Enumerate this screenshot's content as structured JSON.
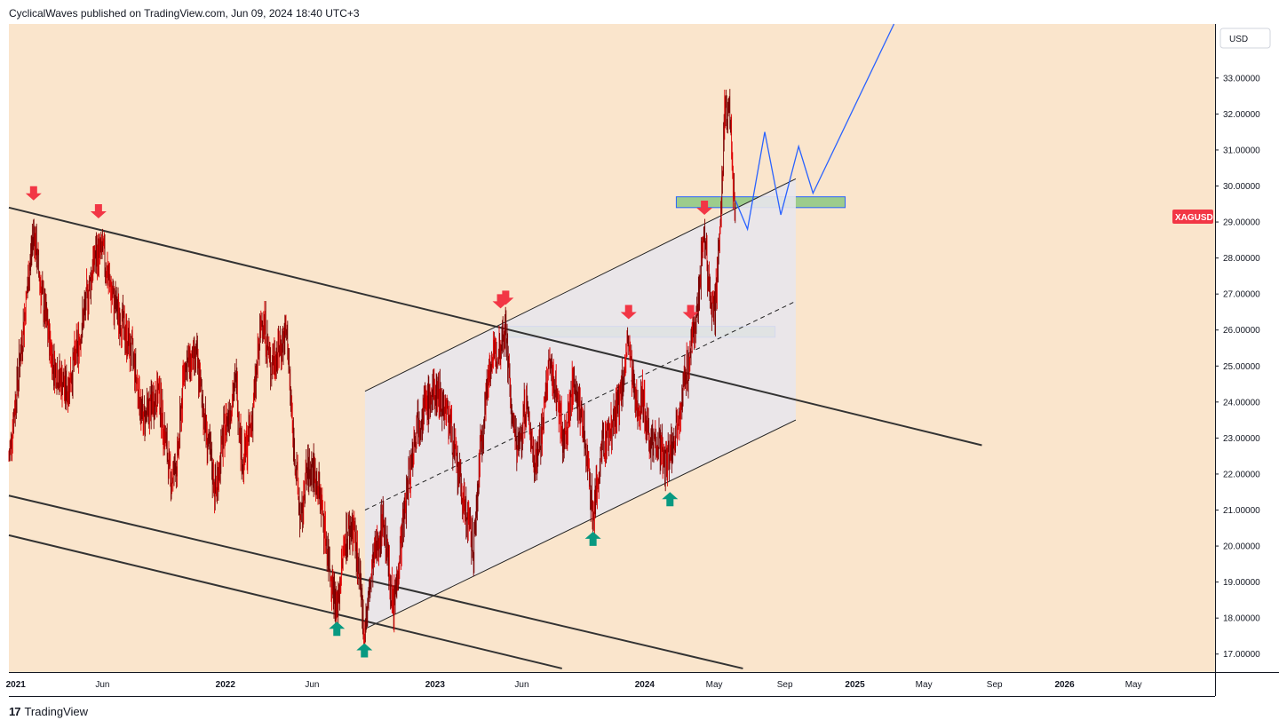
{
  "header": {
    "publish_line": "CyclicalWaves published on TradingView.com, Jun 09, 2024 18:40 UTC+3"
  },
  "footer": {
    "brand": "TradingView",
    "logo_mark": "17"
  },
  "colors": {
    "chart_bg": "#fae5cc",
    "candle": "#7a0000",
    "candle_accent": "#e00000",
    "channel_fill": "#e8e6ec",
    "zone_fill": "#9dcc8c",
    "zone_border": "#2962ff",
    "projection": "#2962ff",
    "trendline": "#333333",
    "arrow_down": "#f23645",
    "arrow_up": "#089981",
    "badge": "#f23645"
  },
  "chart_data": {
    "type": "candlestick",
    "symbol": "XAGUSD",
    "currency_button": "USD",
    "y_axis": {
      "range": [
        16.5,
        34.5
      ],
      "ticks": [
        "33.00000",
        "32.00000",
        "31.00000",
        "30.00000",
        "29.00000",
        "28.00000",
        "27.00000",
        "26.00000",
        "25.00000",
        "24.00000",
        "23.00000",
        "22.00000",
        "21.00000",
        "20.00000",
        "19.00000",
        "18.00000",
        "17.00000"
      ]
    },
    "x_axis": {
      "range": [
        "2020-12-20",
        "2026-09-20"
      ],
      "ticks": [
        {
          "label": "2021",
          "date": "2021-01-01",
          "bold": true
        },
        {
          "label": "Jun",
          "date": "2021-06-01"
        },
        {
          "label": "2022",
          "date": "2022-01-01",
          "bold": true
        },
        {
          "label": "Jun",
          "date": "2022-06-01"
        },
        {
          "label": "2023",
          "date": "2023-01-01",
          "bold": true
        },
        {
          "label": "Jun",
          "date": "2023-06-01"
        },
        {
          "label": "2024",
          "date": "2024-01-01",
          "bold": true
        },
        {
          "label": "May",
          "date": "2024-05-01"
        },
        {
          "label": "Sep",
          "date": "2024-09-01"
        },
        {
          "label": "2025",
          "date": "2025-01-01",
          "bold": true
        },
        {
          "label": "May",
          "date": "2025-05-01"
        },
        {
          "label": "Sep",
          "date": "2025-09-01"
        },
        {
          "label": "2026",
          "date": "2026-01-01",
          "bold": true
        },
        {
          "label": "May",
          "date": "2026-05-01"
        }
      ]
    },
    "last_price_label": "XAGUSD",
    "price_path": [
      [
        "2020-12-20",
        22.4
      ],
      [
        "2021-01-15",
        26.2
      ],
      [
        "2021-02-01",
        28.8
      ],
      [
        "2021-02-15",
        27.0
      ],
      [
        "2021-03-08",
        25.0
      ],
      [
        "2021-03-31",
        24.3
      ],
      [
        "2021-04-20",
        25.6
      ],
      [
        "2021-05-18",
        28.0
      ],
      [
        "2021-06-01",
        28.2
      ],
      [
        "2021-06-20",
        26.8
      ],
      [
        "2021-07-05",
        26.2
      ],
      [
        "2021-07-25",
        25.2
      ],
      [
        "2021-08-10",
        23.5
      ],
      [
        "2021-08-25",
        23.9
      ],
      [
        "2021-09-07",
        24.3
      ],
      [
        "2021-09-28",
        21.8
      ],
      [
        "2021-10-10",
        22.4
      ],
      [
        "2021-10-21",
        25.0
      ],
      [
        "2021-11-12",
        25.2
      ],
      [
        "2021-11-30",
        23.0
      ],
      [
        "2021-12-15",
        21.5
      ],
      [
        "2021-12-30",
        23.2
      ],
      [
        "2022-01-20",
        24.6
      ],
      [
        "2022-01-31",
        22.2
      ],
      [
        "2022-02-15",
        23.4
      ],
      [
        "2022-03-07",
        26.5
      ],
      [
        "2022-03-20",
        25.0
      ],
      [
        "2022-04-18",
        25.9
      ],
      [
        "2022-04-28",
        23.2
      ],
      [
        "2022-05-13",
        20.5
      ],
      [
        "2022-05-20",
        21.9
      ],
      [
        "2022-06-01",
        22.2
      ],
      [
        "2022-06-15",
        21.4
      ],
      [
        "2022-07-01",
        19.5
      ],
      [
        "2022-07-14",
        18.2
      ],
      [
        "2022-07-28",
        20.2
      ],
      [
        "2022-08-12",
        20.6
      ],
      [
        "2022-08-31",
        17.6
      ],
      [
        "2022-09-15",
        19.5
      ],
      [
        "2022-10-03",
        20.8
      ],
      [
        "2022-10-20",
        18.2
      ],
      [
        "2022-11-15",
        21.8
      ],
      [
        "2022-12-01",
        23.5
      ],
      [
        "2022-12-20",
        24.0
      ],
      [
        "2023-01-05",
        24.3
      ],
      [
        "2023-01-25",
        23.6
      ],
      [
        "2023-02-10",
        22.0
      ],
      [
        "2023-02-28",
        20.6
      ],
      [
        "2023-03-09",
        19.9
      ],
      [
        "2023-03-20",
        22.5
      ],
      [
        "2023-04-05",
        25.0
      ],
      [
        "2023-04-20",
        25.4
      ],
      [
        "2023-05-04",
        26.1
      ],
      [
        "2023-05-15",
        23.5
      ],
      [
        "2023-05-26",
        22.6
      ],
      [
        "2023-06-08",
        24.0
      ],
      [
        "2023-06-23",
        22.4
      ],
      [
        "2023-07-05",
        23.0
      ],
      [
        "2023-07-19",
        25.1
      ],
      [
        "2023-08-01",
        24.2
      ],
      [
        "2023-08-14",
        22.8
      ],
      [
        "2023-08-31",
        24.7
      ],
      [
        "2023-09-15",
        23.3
      ],
      [
        "2023-09-25",
        22.3
      ],
      [
        "2023-10-03",
        20.8
      ],
      [
        "2023-10-20",
        22.8
      ],
      [
        "2023-11-01",
        23.2
      ],
      [
        "2023-11-15",
        23.8
      ],
      [
        "2023-12-04",
        25.6
      ],
      [
        "2023-12-15",
        23.9
      ],
      [
        "2023-12-28",
        24.1
      ],
      [
        "2024-01-10",
        23.0
      ],
      [
        "2024-01-25",
        22.9
      ],
      [
        "2024-02-07",
        22.2
      ],
      [
        "2024-02-20",
        22.9
      ],
      [
        "2024-03-06",
        24.2
      ],
      [
        "2024-03-18",
        25.1
      ],
      [
        "2024-04-05",
        27.1
      ],
      [
        "2024-04-12",
        28.8
      ],
      [
        "2024-04-22",
        27.3
      ],
      [
        "2024-05-01",
        26.3
      ],
      [
        "2024-05-10",
        28.2
      ],
      [
        "2024-05-17",
        31.2
      ],
      [
        "2024-05-20",
        32.3
      ],
      [
        "2024-05-29",
        31.8
      ],
      [
        "2024-06-04",
        29.8
      ],
      [
        "2024-06-07",
        29.2
      ]
    ],
    "projection": [
      [
        "2024-06-07",
        29.6
      ],
      [
        "2024-06-28",
        28.8
      ],
      [
        "2024-07-28",
        31.5
      ],
      [
        "2024-08-25",
        29.2
      ],
      [
        "2024-09-25",
        31.1
      ],
      [
        "2024-10-20",
        29.8
      ],
      [
        "2025-03-10",
        34.5
      ]
    ],
    "zones": [
      {
        "from": "2023-05-01",
        "to": "2024-08-15",
        "low": 25.8,
        "high": 26.1
      },
      {
        "from": "2024-02-25",
        "to": "2024-12-15",
        "low": 29.4,
        "high": 29.7
      }
    ],
    "channel": {
      "lower": [
        [
          "2022-09-01",
          17.7
        ],
        [
          "2024-09-20",
          23.5
        ]
      ],
      "upper": [
        [
          "2022-09-01",
          24.3
        ],
        [
          "2024-09-20",
          30.2
        ]
      ],
      "mid": [
        [
          "2022-09-01",
          21.0
        ],
        [
          "2024-09-20",
          26.8
        ]
      ]
    },
    "trendlines": [
      [
        [
          "2020-12-20",
          29.4
        ],
        [
          "2025-08-10",
          22.8
        ]
      ],
      [
        [
          "2020-12-20",
          21.4
        ],
        [
          "2024-06-20",
          16.6
        ]
      ],
      [
        [
          "2020-12-20",
          20.3
        ],
        [
          "2023-08-10",
          16.6
        ]
      ]
    ],
    "arrows": [
      {
        "dir": "down",
        "date": "2021-02-01",
        "price": 29.6
      },
      {
        "dir": "down",
        "date": "2021-05-25",
        "price": 29.1
      },
      {
        "dir": "down",
        "date": "2023-04-25",
        "price": 26.6
      },
      {
        "dir": "down",
        "date": "2023-05-04",
        "price": 26.7
      },
      {
        "dir": "down",
        "date": "2023-12-04",
        "price": 26.3
      },
      {
        "dir": "down",
        "date": "2024-03-21",
        "price": 26.3
      },
      {
        "dir": "down",
        "date": "2024-04-14",
        "price": 29.2
      },
      {
        "dir": "up",
        "date": "2022-07-14",
        "price": 17.9
      },
      {
        "dir": "up",
        "date": "2022-08-31",
        "price": 17.3
      },
      {
        "dir": "up",
        "date": "2023-10-03",
        "price": 20.4
      },
      {
        "dir": "up",
        "date": "2024-02-14",
        "price": 21.5
      }
    ]
  }
}
